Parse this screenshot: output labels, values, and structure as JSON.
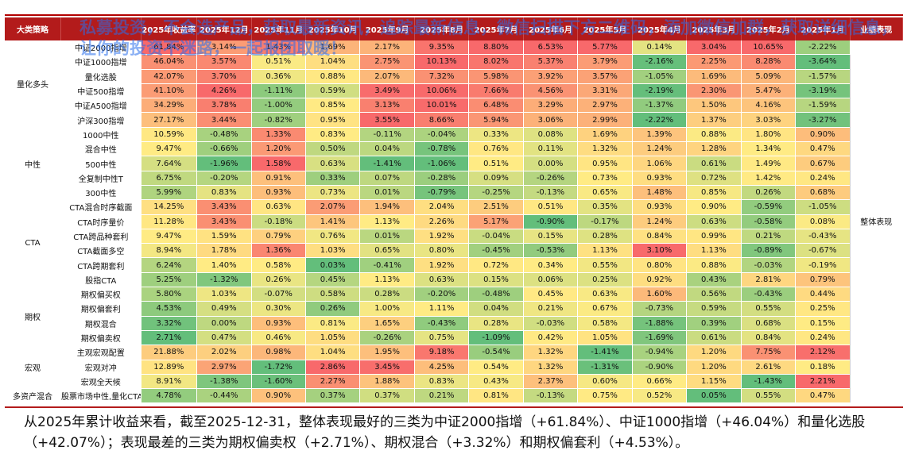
{
  "header": {
    "columns": [
      "大类策略",
      "",
      "2025年收益率",
      "2025年12月",
      "2025年11月",
      "2025年10月",
      "2025年9月",
      "2025年8月",
      "2025年7月",
      "2025年6月",
      "2025年5月",
      "2025年4月",
      "2025年3月",
      "2025年2月",
      "2025年1月",
      "业绩表现"
    ]
  },
  "summary_label": "整体表现",
  "groups": [
    {
      "category": "量化多头",
      "rows": [
        {
          "name": "中证2000指增",
          "values": [
            "61.84%",
            "3.14%",
            "1.43%",
            "1.69%",
            "2.17%",
            "9.35%",
            "8.80%",
            "6.53%",
            "5.77%",
            "0.14%",
            "3.04%",
            "10.65%",
            "-2.22%"
          ]
        },
        {
          "name": "中证1000指增",
          "values": [
            "46.04%",
            "3.57%",
            "0.51%",
            "1.04%",
            "2.75%",
            "10.13%",
            "8.02%",
            "5.37%",
            "3.79%",
            "-2.16%",
            "2.25%",
            "8.28%",
            "-3.64%"
          ]
        },
        {
          "name": "量化选股",
          "values": [
            "42.07%",
            "3.70%",
            "0.36%",
            "0.88%",
            "2.07%",
            "7.32%",
            "5.98%",
            "3.92%",
            "3.57%",
            "-1.05%",
            "1.69%",
            "5.09%",
            "-1.57%"
          ]
        },
        {
          "name": "中证500指增",
          "values": [
            "41.10%",
            "4.26%",
            "-1.11%",
            "0.59%",
            "3.49%",
            "10.06%",
            "7.66%",
            "4.56%",
            "3.31%",
            "-2.19%",
            "2.30%",
            "5.47%",
            "-3.19%"
          ]
        },
        {
          "name": "中证A500指增",
          "values": [
            "34.29%",
            "3.78%",
            "-1.00%",
            "0.85%",
            "3.13%",
            "10.01%",
            "6.48%",
            "3.29%",
            "2.97%",
            "-1.37%",
            "1.50%",
            "4.16%",
            "-1.59%"
          ]
        },
        {
          "name": "沪深300指增",
          "values": [
            "27.17%",
            "3.44%",
            "-0.82%",
            "0.95%",
            "3.55%",
            "8.66%",
            "5.94%",
            "3.06%",
            "2.99%",
            "-2.22%",
            "1.37%",
            "3.03%",
            "-3.27%"
          ]
        }
      ]
    },
    {
      "category": "中性",
      "rows": [
        {
          "name": "1000中性",
          "values": [
            "10.59%",
            "-0.48%",
            "1.33%",
            "0.83%",
            "-0.11%",
            "-0.04%",
            "0.33%",
            "0.08%",
            "1.69%",
            "1.39%",
            "0.88%",
            "1.80%",
            "0.90%"
          ]
        },
        {
          "name": "混合中性",
          "values": [
            "9.47%",
            "-0.66%",
            "1.20%",
            "0.50%",
            "0.04%",
            "-0.78%",
            "0.76%",
            "0.11%",
            "1.32%",
            "1.24%",
            "1.28%",
            "1.34%",
            "0.47%"
          ]
        },
        {
          "name": "500中性",
          "values": [
            "7.64%",
            "-1.96%",
            "1.58%",
            "0.63%",
            "-1.41%",
            "-1.06%",
            "0.51%",
            "0.00%",
            "0.95%",
            "1.06%",
            "0.61%",
            "1.49%",
            "0.67%"
          ]
        },
        {
          "name": "全复制中性T",
          "values": [
            "6.75%",
            "-0.20%",
            "0.91%",
            "0.33%",
            "0.07%",
            "-0.28%",
            "0.09%",
            "-0.26%",
            "0.73%",
            "0.93%",
            "0.72%",
            "1.42%",
            "0.24%"
          ]
        },
        {
          "name": "300中性",
          "values": [
            "5.99%",
            "0.83%",
            "0.93%",
            "0.73%",
            "0.01%",
            "-0.79%",
            "-0.25%",
            "-0.13%",
            "0.65%",
            "1.48%",
            "0.85%",
            "0.26%",
            "0.68%"
          ]
        }
      ]
    },
    {
      "category": "CTA",
      "rows": [
        {
          "name": "CTA混合时序截面",
          "values": [
            "14.25%",
            "3.43%",
            "0.63%",
            "2.07%",
            "1.94%",
            "2.04%",
            "2.51%",
            "0.51%",
            "0.35%",
            "0.93%",
            "0.90%",
            "-0.59%",
            "-1.05%"
          ]
        },
        {
          "name": "CTA时序量价",
          "values": [
            "11.28%",
            "3.43%",
            "-0.18%",
            "1.41%",
            "1.13%",
            "2.26%",
            "5.17%",
            "-0.90%",
            "-0.17%",
            "1.24%",
            "0.63%",
            "-0.58%",
            "0.08%"
          ]
        },
        {
          "name": "CTA跨品种套利",
          "values": [
            "9.47%",
            "1.59%",
            "0.79%",
            "0.76%",
            "0.01%",
            "1.92%",
            "-0.04%",
            "0.15%",
            "0.28%",
            "0.84%",
            "0.99%",
            "0.21%",
            "-0.43%"
          ]
        },
        {
          "name": "CTA截面多空",
          "values": [
            "8.94%",
            "1.78%",
            "1.36%",
            "1.03%",
            "0.65%",
            "0.80%",
            "-0.45%",
            "-0.53%",
            "1.13%",
            "3.10%",
            "1.13%",
            "-0.89%",
            "-0.67%"
          ]
        },
        {
          "name": "CTA跨期套利",
          "values": [
            "6.24%",
            "1.40%",
            "0.58%",
            "0.03%",
            "-0.41%",
            "1.92%",
            "0.72%",
            "0.34%",
            "0.55%",
            "0.80%",
            "0.88%",
            "-0.03%",
            "-0.19%"
          ]
        },
        {
          "name": "股指CTA",
          "values": [
            "5.25%",
            "-1.32%",
            "0.26%",
            "0.45%",
            "1.13%",
            "0.63%",
            "0.15%",
            "0.06%",
            "0.25%",
            "0.92%",
            "0.43%",
            "2.81%",
            "0.79%"
          ]
        }
      ]
    },
    {
      "category": "期权",
      "rows": [
        {
          "name": "期权偏买权",
          "values": [
            "5.80%",
            "1.03%",
            "-0.07%",
            "0.58%",
            "0.28%",
            "-0.20%",
            "-0.48%",
            "0.45%",
            "0.63%",
            "1.60%",
            "0.56%",
            "-0.43%",
            "0.44%"
          ]
        },
        {
          "name": "期权偏套利",
          "values": [
            "4.53%",
            "0.49%",
            "0.30%",
            "0.26%",
            "1.00%",
            "1.11%",
            "0.04%",
            "0.21%",
            "0.67%",
            "-0.73%",
            "0.59%",
            "0.55%",
            "0.25%"
          ]
        },
        {
          "name": "期权混合",
          "values": [
            "3.32%",
            "0.00%",
            "0.93%",
            "0.81%",
            "1.65%",
            "-0.43%",
            "0.28%",
            "-0.03%",
            "0.58%",
            "-1.88%",
            "0.39%",
            "0.68%",
            "0.15%"
          ]
        },
        {
          "name": "期权偏卖权",
          "values": [
            "2.71%",
            "0.47%",
            "0.46%",
            "1.05%",
            "-0.26%",
            "0.75%",
            "-1.09%",
            "0.42%",
            "1.05%",
            "-1.69%",
            "0.61%",
            "0.84%",
            "0.24%"
          ]
        }
      ]
    },
    {
      "category": "宏观",
      "rows": [
        {
          "name": "主观宏观配置",
          "values": [
            "21.88%",
            "2.02%",
            "0.98%",
            "1.04%",
            "1.95%",
            "9.18%",
            "-0.54%",
            "1.32%",
            "-1.41%",
            "-0.94%",
            "1.20%",
            "7.75%",
            "2.12%"
          ]
        },
        {
          "name": "宏观对冲",
          "values": [
            "12.89%",
            "2.97%",
            "-1.72%",
            "2.86%",
            "3.45%",
            "4.25%",
            "0.54%",
            "1.32%",
            "-1.31%",
            "-0.90%",
            "1.20%",
            "2.61%",
            "0.18%"
          ]
        },
        {
          "name": "宏观全天候",
          "values": [
            "8.91%",
            "-1.38%",
            "-1.60%",
            "2.27%",
            "1.88%",
            "0.83%",
            "0.43%",
            "2.37%",
            "0.60%",
            "0.66%",
            "1.15%",
            "-1.43%",
            "2.21%"
          ]
        }
      ]
    },
    {
      "category": "多资产混合",
      "rows": [
        {
          "name": "股票市场中性,量化CTA",
          "values": [
            "4.78%",
            "-0.44%",
            "0.90%",
            "0.37%",
            "0.37%",
            "0.21%",
            "0.81%",
            "-0.13%",
            "0.75%",
            "0.52%",
            "0.05%",
            "0.55%",
            "0.47%"
          ]
        }
      ]
    }
  ],
  "conclusion": "从2025年累计收益来看，截至2025-12-31，整体表现最好的三类为中证2000指增（+61.84%）、中证1000指增（+46.04%）和量化选股（+42.07%）；表现最差的三类为期权偏卖权（+2.71%）、期权混合（+3.32%）和期权偏套利（+4.53%）。",
  "watermark": "私募投资，不会选产品，获取最新资讯，追踪最新信息，微信扫描下方二维码，添加微信加群，获取详细信息，让你的投资不迷路，一起报团取暖！"
}
